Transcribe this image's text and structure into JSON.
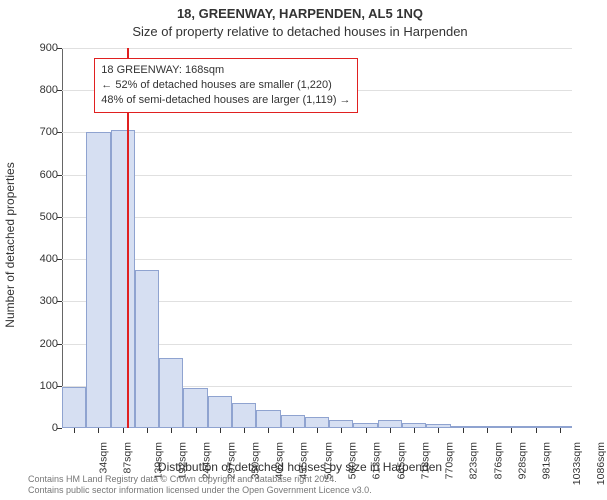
{
  "title_line1": "18, GREENWAY, HARPENDEN, AL5 1NQ",
  "title_line2": "Size of property relative to detached houses in Harpenden",
  "ylabel": "Number of detached properties",
  "xlabel": "Distribution of detached houses by size in Harpenden",
  "chart": {
    "type": "histogram",
    "ylim": [
      0,
      900
    ],
    "ytick_step": 100,
    "yticks": [
      0,
      100,
      200,
      300,
      400,
      500,
      600,
      700,
      800,
      900
    ],
    "categories": [
      "34sqm",
      "87sqm",
      "139sqm",
      "192sqm",
      "244sqm",
      "297sqm",
      "350sqm",
      "402sqm",
      "455sqm",
      "507sqm",
      "560sqm",
      "613sqm",
      "665sqm",
      "718sqm",
      "770sqm",
      "823sqm",
      "876sqm",
      "928sqm",
      "981sqm",
      "1033sqm",
      "1086sqm"
    ],
    "values": [
      98,
      700,
      705,
      375,
      165,
      95,
      75,
      60,
      42,
      30,
      25,
      20,
      12,
      18,
      12,
      10,
      0,
      5,
      0,
      0,
      5
    ],
    "bar_fill": "#d6dff2",
    "bar_stroke": "#8fa3d0",
    "grid_color": "#e0e0e0",
    "background_color": "#ffffff",
    "axis_color": "#666",
    "label_fontsize": 12,
    "title_fontsize": 13,
    "tick_fontsize": 11,
    "marker_value_sqm": 168,
    "marker_color": "#e02020"
  },
  "annotation": {
    "line1": "18 GREENWAY: 168sqm",
    "line2": "← 52% of detached houses are smaller (1,220)",
    "line3": "48% of semi-detached houses are larger (1,119) →",
    "border_color": "#e02020",
    "fontsize": 11
  },
  "footer": {
    "line1": "Contains HM Land Registry data © Crown copyright and database right 2024.",
    "line2": "Contains public sector information licensed under the Open Government Licence v3.0."
  }
}
